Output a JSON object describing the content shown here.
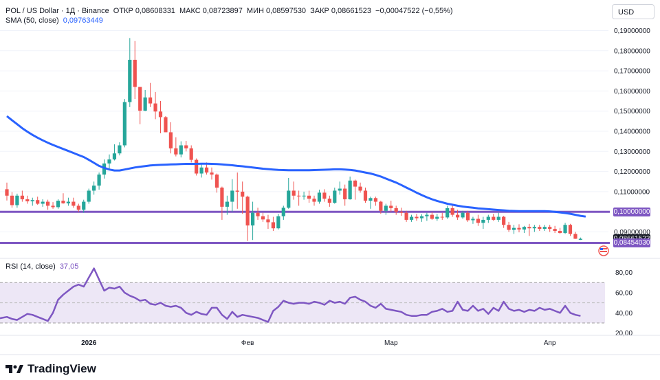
{
  "header": {
    "symbol": "POL / US Dollar · 1Д · Binance",
    "open_label": "ОТКР",
    "open_value": "0,08608331",
    "high_label": "МАКС",
    "high_value": "0,08723897",
    "low_label": "МИН",
    "low_value": "0,08597530",
    "close_label": "ЗАКР",
    "close_value": "0,08661523",
    "change": "−0,00047522 (−0,55%)",
    "sma_label": "SMA (50, close)",
    "sma_value": "0,09763449",
    "rsi_label": "RSI (14, close)",
    "rsi_value": "37,05"
  },
  "currency": "USD",
  "brand": "TradingView",
  "colors": {
    "up": "#26a69a",
    "down": "#ef5350",
    "sma": "#2962ff",
    "horizontal_lines": "#7e57c2",
    "rsi": "#7e57c2",
    "rsi_band": "#ede7f6",
    "last_price_tag": "#131722",
    "low_line_tag": "#7e57c2"
  },
  "chart_data": [
    {
      "type": "candlestick",
      "y_scale": "linear",
      "ylim": [
        0.085,
        0.19
      ],
      "y_ticks": [
        "0,09000000",
        "0,10000000",
        "0,11000000",
        "0,12000000",
        "0,13000000",
        "0,14000000",
        "0,15000000",
        "0,16000000",
        "0,17000000",
        "0,18000000",
        "0,19000000"
      ],
      "x_ticks": [
        {
          "label": "2026",
          "index": 16,
          "bold": true
        },
        {
          "label": "Фев",
          "index": 47,
          "bold": false
        },
        {
          "label": "Мар",
          "index": 75,
          "bold": false
        },
        {
          "label": "Апр",
          "index": 106,
          "bold": false
        }
      ],
      "horizontal_lines": [
        {
          "value": 0.1,
          "label": "0,10000000"
        },
        {
          "value": 0.0845403,
          "label": "0,08454030"
        }
      ],
      "last_price": {
        "value": 0.08661523,
        "label": "0,08661523"
      },
      "series": [
        {
          "name": "POL / US Dollar",
          "ohlc": [
            [
              0.1112,
              0.1145,
              0.1056,
              0.108
            ],
            [
              0.108,
              0.1098,
              0.102,
              0.1033
            ],
            [
              0.1033,
              0.109,
              0.102,
              0.108
            ],
            [
              0.108,
              0.1105,
              0.105,
              0.1062
            ],
            [
              0.1062,
              0.108,
              0.104,
              0.1052
            ],
            [
              0.1052,
              0.107,
              0.103,
              0.1058
            ],
            [
              0.1058,
              0.1075,
              0.1035,
              0.104
            ],
            [
              0.104,
              0.1062,
              0.1025,
              0.105
            ],
            [
              0.105,
              0.106,
              0.101,
              0.103
            ],
            [
              0.103,
              0.1048,
              0.1015,
              0.1023
            ],
            [
              0.1023,
              0.1062,
              0.1015,
              0.1055
            ],
            [
              0.1055,
              0.1092,
              0.104,
              0.1042
            ],
            [
              0.1042,
              0.107,
              0.103,
              0.105
            ],
            [
              0.105,
              0.107,
              0.102,
              0.103
            ],
            [
              0.103,
              0.104,
              0.1,
              0.101
            ],
            [
              0.101,
              0.106,
              0.0995,
              0.105
            ],
            [
              0.105,
              0.1115,
              0.104,
              0.1105
            ],
            [
              0.1105,
              0.115,
              0.1085,
              0.113
            ],
            [
              0.113,
              0.1195,
              0.111,
              0.1185
            ],
            [
              0.1185,
              0.126,
              0.1165,
              0.124
            ],
            [
              0.124,
              0.1285,
              0.121,
              0.126
            ],
            [
              0.126,
              0.1335,
              0.1255,
              0.129
            ],
            [
              0.129,
              0.1345,
              0.128,
              0.133
            ],
            [
              0.133,
              0.156,
              0.132,
              0.1545
            ],
            [
              0.1545,
              0.1863,
              0.152,
              0.1755
            ],
            [
              0.1755,
              0.1848,
              0.156,
              0.162
            ],
            [
              0.162,
              0.162,
              0.1435,
              0.1502
            ],
            [
              0.1502,
              0.1605,
              0.15,
              0.1568
            ],
            [
              0.1568,
              0.164,
              0.152,
              0.1538
            ],
            [
              0.1538,
              0.1595,
              0.146,
              0.1498
            ],
            [
              0.1498,
              0.155,
              0.139,
              0.147
            ],
            [
              0.147,
              0.1475,
              0.1405,
              0.1395
            ],
            [
              0.1395,
              0.1445,
              0.129,
              0.1315
            ],
            [
              0.1315,
              0.137,
              0.1275,
              0.1285
            ],
            [
              0.1285,
              0.135,
              0.127,
              0.133
            ],
            [
              0.133,
              0.1352,
              0.13,
              0.1315
            ],
            [
              0.1315,
              0.133,
              0.1245,
              0.1258
            ],
            [
              0.1258,
              0.1265,
              0.118,
              0.119
            ],
            [
              0.119,
              0.1235,
              0.117,
              0.122
            ],
            [
              0.122,
              0.1245,
              0.1185,
              0.1195
            ],
            [
              0.1195,
              0.122,
              0.116,
              0.1185
            ],
            [
              0.1185,
              0.119,
              0.1095,
              0.112
            ],
            [
              0.112,
              0.1125,
              0.096,
              0.1025
            ],
            [
              0.1025,
              0.108,
              0.0985,
              0.105
            ],
            [
              0.105,
              0.1162,
              0.1,
              0.1105
            ],
            [
              0.1105,
              0.1195,
              0.1015,
              0.11
            ],
            [
              0.11,
              0.115,
              0.099,
              0.1075
            ],
            [
              0.1075,
              0.108,
              0.0855,
              0.0932
            ],
            [
              0.0932,
              0.105,
              0.086,
              0.0995
            ],
            [
              0.0995,
              0.102,
              0.096,
              0.0978
            ],
            [
              0.0978,
              0.0995,
              0.095,
              0.0962
            ],
            [
              0.0962,
              0.0985,
              0.0915,
              0.0948
            ],
            [
              0.0948,
              0.0975,
              0.0905,
              0.0918
            ],
            [
              0.0918,
              0.099,
              0.0912,
              0.0978
            ],
            [
              0.0978,
              0.103,
              0.096,
              0.102
            ],
            [
              0.102,
              0.1168,
              0.1015,
              0.1105
            ],
            [
              0.1105,
              0.115,
              0.106,
              0.108
            ],
            [
              0.108,
              0.1105,
              0.103,
              0.1078
            ],
            [
              0.1078,
              0.11,
              0.106,
              0.108
            ],
            [
              0.108,
              0.1105,
              0.1045,
              0.1065
            ],
            [
              0.1065,
              0.108,
              0.103,
              0.105
            ],
            [
              0.105,
              0.111,
              0.104,
              0.1095
            ],
            [
              0.1095,
              0.1112,
              0.105,
              0.1065
            ],
            [
              0.1065,
              0.108,
              0.1025,
              0.1045
            ],
            [
              0.1045,
              0.112,
              0.104,
              0.1105
            ],
            [
              0.1105,
              0.115,
              0.1085,
              0.1115
            ],
            [
              0.1115,
              0.1135,
              0.103,
              0.1062
            ],
            [
              0.1062,
              0.1175,
              0.106,
              0.1155
            ],
            [
              0.1155,
              0.116,
              0.106,
              0.1125
            ],
            [
              0.1125,
              0.1145,
              0.1095,
              0.1105
            ],
            [
              0.1105,
              0.112,
              0.1045,
              0.1055
            ],
            [
              0.1055,
              0.1075,
              0.1015,
              0.1068
            ],
            [
              0.1068,
              0.1075,
              0.103,
              0.105
            ],
            [
              0.105,
              0.1055,
              0.099,
              0.1005
            ],
            [
              0.1005,
              0.104,
              0.0985,
              0.103
            ],
            [
              0.103,
              0.1055,
              0.1,
              0.1018
            ],
            [
              0.1018,
              0.103,
              0.0985,
              0.1
            ],
            [
              0.1,
              0.102,
              0.098,
              0.0995
            ],
            [
              0.0995,
              0.1005,
              0.095,
              0.096
            ],
            [
              0.096,
              0.0985,
              0.095,
              0.0975
            ],
            [
              0.0975,
              0.099,
              0.0955,
              0.0968
            ],
            [
              0.0968,
              0.0988,
              0.095,
              0.0978
            ],
            [
              0.0978,
              0.0995,
              0.0955,
              0.0985
            ],
            [
              0.0985,
              0.0998,
              0.096,
              0.0965
            ],
            [
              0.0965,
              0.099,
              0.0955,
              0.0975
            ],
            [
              0.0975,
              0.0995,
              0.096,
              0.0972
            ],
            [
              0.0972,
              0.103,
              0.0965,
              0.1018
            ],
            [
              0.1018,
              0.103,
              0.0975,
              0.0985
            ],
            [
              0.0985,
              0.101,
              0.096,
              0.0972
            ],
            [
              0.0972,
              0.1005,
              0.0965,
              0.0995
            ],
            [
              0.0995,
              0.1005,
              0.095,
              0.0958
            ],
            [
              0.0958,
              0.0975,
              0.094,
              0.0965
            ],
            [
              0.0965,
              0.0985,
              0.093,
              0.0945
            ],
            [
              0.0945,
              0.0975,
              0.0915,
              0.096
            ],
            [
              0.096,
              0.0985,
              0.0945,
              0.0975
            ],
            [
              0.0975,
              0.099,
              0.0955,
              0.096
            ],
            [
              0.096,
              0.0995,
              0.095,
              0.0975
            ],
            [
              0.0975,
              0.098,
              0.092,
              0.0935
            ],
            [
              0.0935,
              0.095,
              0.09,
              0.091
            ],
            [
              0.091,
              0.0935,
              0.089,
              0.092
            ],
            [
              0.092,
              0.0938,
              0.0898,
              0.0912
            ],
            [
              0.0912,
              0.093,
              0.0895,
              0.0925
            ],
            [
              0.0925,
              0.094,
              0.088,
              0.0918
            ],
            [
              0.0918,
              0.0935,
              0.09,
              0.0925
            ],
            [
              0.0925,
              0.0935,
              0.0905,
              0.0915
            ],
            [
              0.0915,
              0.0935,
              0.0905,
              0.0925
            ],
            [
              0.0925,
              0.0935,
              0.09,
              0.0915
            ],
            [
              0.0915,
              0.093,
              0.0895,
              0.0905
            ],
            [
              0.0905,
              0.092,
              0.089,
              0.0895
            ],
            [
              0.0895,
              0.0945,
              0.089,
              0.0935
            ],
            [
              0.0935,
              0.094,
              0.088,
              0.089
            ],
            [
              0.089,
              0.09,
              0.0865,
              0.0866
            ],
            [
              0.0861,
              0.0872,
              0.086,
              0.0866
            ]
          ]
        },
        {
          "name": "SMA (50, close)",
          "values": [
            0.1475,
            0.1455,
            0.1435,
            0.1415,
            0.1398,
            0.1382,
            0.1368,
            0.1355,
            0.1343,
            0.1332,
            0.1322,
            0.1312,
            0.1302,
            0.1292,
            0.1282,
            0.1272,
            0.1258,
            0.1243,
            0.1228,
            0.1218,
            0.121,
            0.1205,
            0.1205,
            0.121,
            0.1215,
            0.122,
            0.1224,
            0.1227,
            0.123,
            0.1232,
            0.1233,
            0.1234,
            0.1235,
            0.1236,
            0.1237,
            0.1238,
            0.1238,
            0.1238,
            0.1239,
            0.1239,
            0.1238,
            0.1237,
            0.1235,
            0.1233,
            0.1231,
            0.1228,
            0.1226,
            0.1223,
            0.122,
            0.1217,
            0.1214,
            0.1212,
            0.121,
            0.1208,
            0.1207,
            0.1206,
            0.1206,
            0.1206,
            0.1206,
            0.1206,
            0.1207,
            0.1208,
            0.1209,
            0.121,
            0.1211,
            0.1211,
            0.121,
            0.1208,
            0.1205,
            0.12,
            0.1195,
            0.119,
            0.1183,
            0.1175,
            0.1165,
            0.1155,
            0.1145,
            0.1133,
            0.112,
            0.1108,
            0.1095,
            0.1083,
            0.1072,
            0.1062,
            0.1054,
            0.1047,
            0.104,
            0.1035,
            0.103,
            0.1026,
            0.1023,
            0.102,
            0.1017,
            0.1015,
            0.1013,
            0.1011,
            0.1009,
            0.1007,
            0.1005,
            0.1004,
            0.1003,
            0.1003,
            0.1003,
            0.1003,
            0.1003,
            0.1003,
            0.1002,
            0.1,
            0.0997,
            0.0994,
            0.099,
            0.0985,
            0.098,
            0.0976
          ]
        }
      ]
    },
    {
      "type": "line",
      "name": "RSI (14, close)",
      "ylim": [
        15,
        90
      ],
      "y_ticks": [
        "80,00",
        "60,00",
        "40,00",
        "20,00"
      ],
      "band": [
        30,
        70
      ],
      "middle_line": 50,
      "values": [
        33,
        30,
        28,
        35,
        38,
        36,
        37,
        35,
        34,
        35,
        36,
        34,
        33,
        36,
        39,
        38,
        36,
        34,
        32,
        40,
        53,
        58,
        62,
        66,
        68,
        66,
        75,
        84,
        73,
        62,
        65,
        64,
        66,
        60,
        57,
        55,
        52,
        53,
        49,
        48,
        50,
        47,
        46,
        47,
        45,
        40,
        38,
        41,
        39,
        38,
        45,
        45,
        38,
        34,
        41,
        36,
        38,
        37,
        36,
        35,
        33,
        31,
        42,
        46,
        52,
        50,
        49,
        50,
        50,
        49,
        51,
        50,
        48,
        52,
        50,
        51,
        49,
        55,
        56,
        53,
        51,
        47,
        45,
        49,
        44,
        43,
        42,
        41,
        38,
        37,
        37,
        38,
        38,
        41,
        42,
        44,
        41,
        42,
        51,
        43,
        42,
        47,
        42,
        44,
        39,
        45,
        42,
        51,
        44,
        42,
        43,
        41,
        43,
        42,
        45,
        43,
        44,
        42,
        40,
        47,
        40,
        38,
        37
      ]
    }
  ]
}
